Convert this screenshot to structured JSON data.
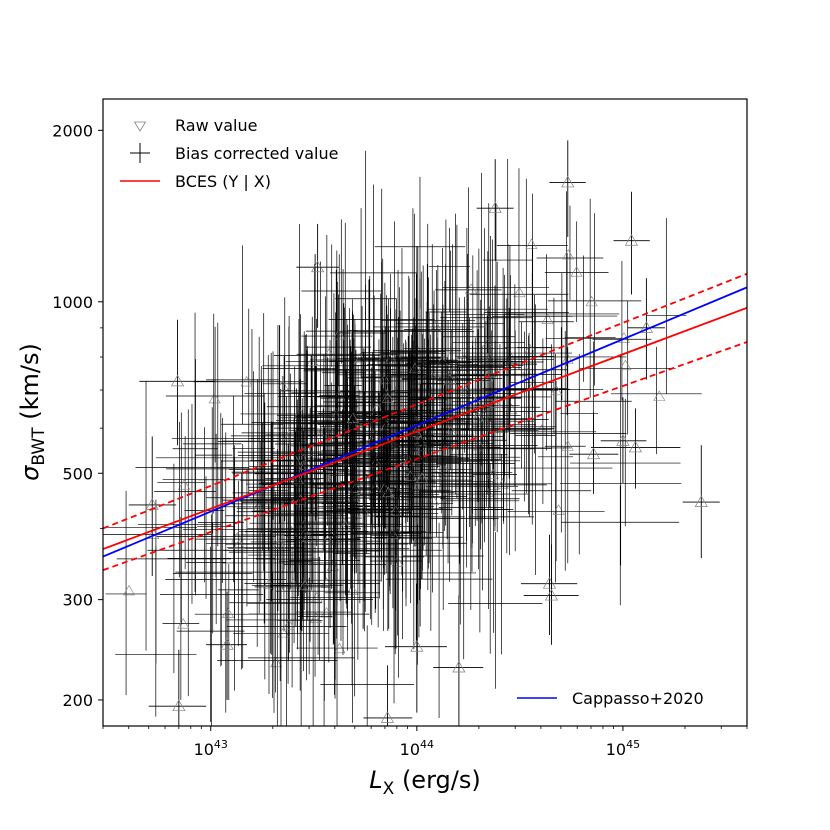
{
  "chart_data": {
    "type": "scatter",
    "title": "",
    "xlabel_main": "L",
    "xlabel_sub": "X",
    "xlabel_unit": " (erg/s)",
    "ylabel_main": "σ",
    "ylabel_sub": "BWT",
    "ylabel_unit": " (km/s)",
    "x_scale": "log",
    "y_scale": "log",
    "xlim": [
      3e+42,
      4e+45
    ],
    "ylim": [
      180,
      2270
    ],
    "x_ticks": [
      {
        "value": 1e+43,
        "base": "10",
        "exp": "43"
      },
      {
        "value": 1e+44,
        "base": "10",
        "exp": "44"
      },
      {
        "value": 1e+45,
        "base": "10",
        "exp": "45"
      }
    ],
    "y_ticks": [
      {
        "value": 200,
        "label": "200"
      },
      {
        "value": 300,
        "label": "300"
      },
      {
        "value": 500,
        "label": "500"
      },
      {
        "value": 1000,
        "label": "1000"
      },
      {
        "value": 2000,
        "label": "2000"
      }
    ],
    "legend": {
      "position": "top-left",
      "raw_label": "Raw value",
      "corrected_label": "Bias corrected value",
      "bces_label": "BCES (Y | X)",
      "cappasso_label": "Cappasso+2020",
      "cappasso_position": "bottom-right"
    },
    "colors": {
      "bces": "#ff0000",
      "cappasso": "#0000ff",
      "points": "#000000",
      "raw_markers": "#808080"
    },
    "fit_lines": {
      "bces_center": {
        "x": [
          3e+42,
          4e+45
        ],
        "y": [
          368,
          976
        ]
      },
      "bces_upper": {
        "x": [
          3e+42,
          4e+45
        ],
        "y": [
          400,
          1120
        ]
      },
      "bces_lower": {
        "x": [
          3e+42,
          4e+45
        ],
        "y": [
          338,
          850
        ]
      },
      "cappasso": {
        "x": [
          3e+42,
          4e+45
        ],
        "y": [
          357,
          1060
        ]
      }
    },
    "n_points": 520,
    "highlighted_points": [
      {
        "x": 2.4e+45,
        "y": 445,
        "xlo": 1.95e+45,
        "xhi": 2.95e+45,
        "ylo": 355,
        "yhi": 560
      },
      {
        "x": 6.9e+42,
        "y": 725,
        "xlo": 4.5e+42,
        "xhi": 1.05e+43,
        "ylo": 560,
        "yhi": 930
      },
      {
        "x": 7e+42,
        "y": 195,
        "xlo": 5e+42,
        "xhi": 9.5e+42,
        "ylo": 150,
        "yhi": 245
      },
      {
        "x": 3.3e+43,
        "y": 1150,
        "xlo": 2.6e+43,
        "xhi": 4.2e+43,
        "ylo": 900,
        "yhi": 1370
      },
      {
        "x": 5.4e+44,
        "y": 1620,
        "xlo": 4.4e+44,
        "xhi": 6.6e+44,
        "ylo": 1300,
        "yhi": 1920
      },
      {
        "x": 2.4e+44,
        "y": 1460,
        "xlo": 1.95e+44,
        "xhi": 2.95e+44,
        "ylo": 1180,
        "yhi": 1780
      },
      {
        "x": 1.1e+45,
        "y": 1280,
        "xlo": 9e+44,
        "xhi": 1.35e+45,
        "ylo": 1030,
        "yhi": 1560
      },
      {
        "x": 1.3e+45,
        "y": 900,
        "xlo": 1.05e+45,
        "xhi": 1.6e+45,
        "ylo": 730,
        "yhi": 1100
      },
      {
        "x": 4.4e+44,
        "y": 320,
        "xlo": 3.2e+44,
        "xhi": 6e+44,
        "ylo": 260,
        "yhi": 390
      },
      {
        "x": 4.5e+44,
        "y": 305,
        "xlo": 3.3e+44,
        "xhi": 6.1e+44,
        "ylo": 250,
        "yhi": 375
      },
      {
        "x": 1e+44,
        "y": 248,
        "xlo": 7e+43,
        "xhi": 1.4e+44,
        "ylo": 190,
        "yhi": 320
      },
      {
        "x": 1.6e+44,
        "y": 228,
        "xlo": 1.2e+44,
        "xhi": 2.1e+44,
        "ylo": 170,
        "yhi": 305
      },
      {
        "x": 7.2e+43,
        "y": 186,
        "xlo": 5.5e+43,
        "xhi": 9.5e+43,
        "ylo": 150,
        "yhi": 230
      },
      {
        "x": 1.2e+43,
        "y": 250,
        "xlo": 9.5e+42,
        "xhi": 1.5e+43,
        "ylo": 200,
        "yhi": 310
      },
      {
        "x": 1.15e+45,
        "y": 555,
        "xlo": 7e+44,
        "xhi": 1.9e+45,
        "ylo": 470,
        "yhi": 650
      },
      {
        "x": 1e+45,
        "y": 570,
        "xlo": 7.8e+44,
        "xhi": 1.3e+45,
        "ylo": 480,
        "yhi": 680
      },
      {
        "x": 7.2e+44,
        "y": 540,
        "xlo": 5.5e+44,
        "xhi": 9.5e+44,
        "ylo": 460,
        "yhi": 640
      },
      {
        "x": 5.2e+42,
        "y": 440,
        "xlo": 4e+42,
        "xhi": 6.8e+42,
        "ylo": 330,
        "yhi": 580
      }
    ]
  }
}
